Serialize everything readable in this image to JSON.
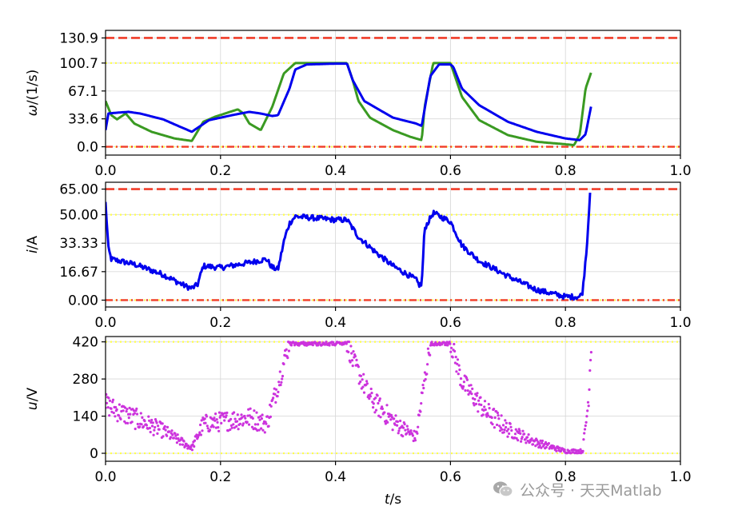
{
  "chart_data": [
    {
      "type": "line",
      "ylabel": "ω/(1/s)",
      "xlim": [
        0.0,
        1.0
      ],
      "ylim": [
        -10,
        140
      ],
      "xticks": [
        "0.0",
        "0.2",
        "0.4",
        "0.6",
        "0.8",
        "1.0"
      ],
      "yticks": [
        0.0,
        33.6,
        67.1,
        100.7,
        130.9
      ],
      "ytick_labels": [
        "0.0",
        "33.6",
        "67.1",
        "100.7",
        "130.9"
      ],
      "grid": true,
      "hlines": [
        {
          "y": 130.9,
          "color": "#f03c28",
          "style": "dashed"
        },
        {
          "y": 100.7,
          "color": "#ffff4d",
          "style": "dotted"
        },
        {
          "y": 0.0,
          "color": "#ffff4d",
          "style": "dotted"
        },
        {
          "y": 0.0,
          "color": "#f03c28",
          "style": "dashdot"
        }
      ],
      "series": [
        {
          "color": "#3a9a22",
          "x": [
            0.0,
            0.01,
            0.02,
            0.035,
            0.05,
            0.08,
            0.12,
            0.15,
            0.17,
            0.19,
            0.23,
            0.24,
            0.25,
            0.27,
            0.29,
            0.31,
            0.33,
            0.35,
            0.4,
            0.42,
            0.43,
            0.44,
            0.46,
            0.5,
            0.53,
            0.55,
            0.555,
            0.57,
            0.6,
            0.62,
            0.65,
            0.7,
            0.75,
            0.8,
            0.815,
            0.825,
            0.835,
            0.845
          ],
          "y": [
            55,
            38,
            33,
            40,
            28,
            18,
            10,
            7,
            30,
            36,
            45,
            40,
            28,
            20,
            48,
            88,
            100.7,
            100.7,
            100.7,
            100.7,
            80,
            55,
            35,
            20,
            12,
            8,
            48,
            100.7,
            100.7,
            60,
            32,
            14,
            6,
            3,
            2,
            15,
            70,
            90
          ]
        },
        {
          "color": "#0000ee",
          "x": [
            0.0,
            0.005,
            0.02,
            0.04,
            0.06,
            0.1,
            0.13,
            0.15,
            0.18,
            0.22,
            0.25,
            0.27,
            0.29,
            0.3,
            0.32,
            0.33,
            0.35,
            0.4,
            0.42,
            0.43,
            0.45,
            0.5,
            0.54,
            0.55,
            0.565,
            0.58,
            0.6,
            0.605,
            0.62,
            0.65,
            0.7,
            0.75,
            0.8,
            0.825,
            0.835,
            0.845
          ],
          "y": [
            20,
            40,
            41,
            42,
            40,
            33,
            24,
            18,
            32,
            38,
            42,
            40,
            37,
            38,
            70,
            93,
            99,
            100,
            100,
            80,
            55,
            35,
            28,
            25,
            85,
            99,
            99,
            96,
            70,
            50,
            30,
            18,
            10,
            8,
            15,
            50
          ]
        }
      ]
    },
    {
      "type": "line",
      "ylabel": "i/A",
      "xlim": [
        0.0,
        1.0
      ],
      "ylim": [
        -4,
        69
      ],
      "xticks": [
        "0.0",
        "0.2",
        "0.4",
        "0.6",
        "0.8",
        "1.0"
      ],
      "yticks": [
        0.0,
        16.67,
        33.33,
        50.0,
        65.0
      ],
      "ytick_labels": [
        "0.00",
        "16.67",
        "33.33",
        "50.00",
        "65.00"
      ],
      "grid": true,
      "hlines": [
        {
          "y": 65.0,
          "color": "#f03c28",
          "style": "dashed"
        },
        {
          "y": 50.0,
          "color": "#ffff4d",
          "style": "dotted"
        },
        {
          "y": 0.0,
          "color": "#ffff4d",
          "style": "dotted"
        },
        {
          "y": 0.0,
          "color": "#f03c28",
          "style": "dashdot"
        }
      ],
      "series": [
        {
          "color": "#0000ee",
          "x": [
            0.0,
            0.005,
            0.01,
            0.05,
            0.1,
            0.14,
            0.15,
            0.16,
            0.17,
            0.2,
            0.25,
            0.28,
            0.29,
            0.3,
            0.31,
            0.315,
            0.32,
            0.33,
            0.4,
            0.42,
            0.44,
            0.47,
            0.5,
            0.54,
            0.545,
            0.55,
            0.555,
            0.57,
            0.6,
            0.62,
            0.65,
            0.7,
            0.75,
            0.8,
            0.825,
            0.83,
            0.838,
            0.843
          ],
          "y": [
            57,
            30,
            24,
            21,
            15,
            8,
            7,
            9,
            20,
            19,
            22,
            24,
            19,
            18,
            34,
            40,
            45,
            49,
            47,
            47,
            37,
            28,
            20,
            12,
            9,
            9,
            42,
            51,
            46,
            32,
            23,
            14,
            6,
            2,
            2,
            5,
            35,
            65
          ]
        }
      ]
    },
    {
      "type": "scatter",
      "ylabel": "u/V",
      "xlabel": "t/s",
      "xlim": [
        0.0,
        1.0
      ],
      "ylim": [
        -30,
        440
      ],
      "xticks": [
        "0.0",
        "0.2",
        "0.4",
        "0.6",
        "0.8",
        "1.0"
      ],
      "yticks": [
        0,
        140,
        280,
        420
      ],
      "ytick_labels": [
        "0",
        "140",
        "280",
        "420"
      ],
      "grid": true,
      "hlines": [
        {
          "y": 420,
          "color": "#ffff4d",
          "style": "dotted"
        },
        {
          "y": 0,
          "color": "#ffff4d",
          "style": "dotted"
        }
      ],
      "series": [
        {
          "color": "#cc33dd",
          "envelope_x": [
            0.0,
            0.02,
            0.1,
            0.15,
            0.17,
            0.25,
            0.28,
            0.3,
            0.32,
            0.42,
            0.43,
            0.46,
            0.5,
            0.54,
            0.545,
            0.565,
            0.6,
            0.62,
            0.66,
            0.7,
            0.75,
            0.8,
            0.83,
            0.84,
            0.845
          ],
          "envelope_y": [
            185,
            160,
            85,
            20,
            110,
            135,
            110,
            260,
            420,
            420,
            350,
            210,
            120,
            60,
            130,
            420,
            420,
            270,
            160,
            90,
            40,
            8,
            8,
            200,
            420
          ],
          "noise": 40
        }
      ]
    }
  ],
  "watermark": {
    "text": "公众号 · 天天Matlab",
    "icon": "wechat-icon"
  }
}
